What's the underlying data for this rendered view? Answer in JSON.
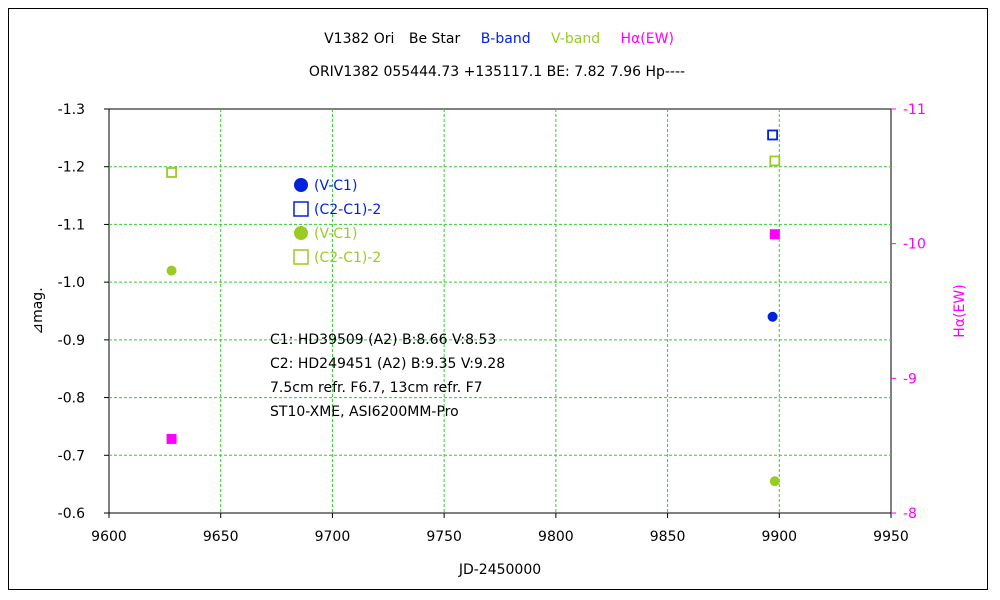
{
  "title": {
    "star": "V1382 Ori",
    "type": "Be Star",
    "bband": "B-band",
    "vband": "V-band",
    "ha": "Hα(EW)",
    "line2": "ORIV1382 055444.73 +135117.1 BE: 7.82 7.96 Hp----"
  },
  "colors": {
    "bband": "#0022dd",
    "vband": "#99cc22",
    "ha": "#ff00ff",
    "grid": "#33cc33"
  },
  "legend": [
    {
      "label": "(V-C1)",
      "color": "#0022dd",
      "marker": "filled-circle"
    },
    {
      "label": "(C2-C1)-2",
      "color": "#0022dd",
      "marker": "open-square"
    },
    {
      "label": "(V-C1)",
      "color": "#99cc22",
      "marker": "filled-circle"
    },
    {
      "label": "(C2-C1)-2",
      "color": "#99cc22",
      "marker": "open-square"
    }
  ],
  "notes": [
    "C1: HD39509 (A2)  B:8.66 V:8.53",
    "C2: HD249451 (A2)  B:9.35 V:9.28",
    "7.5cm refr. F6.7, 13cm refr. F7",
    "ST10-XME,  ASI6200MM-Pro"
  ],
  "chart_data": {
    "type": "scatter",
    "xlabel": "JD-2450000",
    "ylabel": "⊿mag.",
    "y2label": "Hα(EW)",
    "xlim": [
      9600,
      9950
    ],
    "ylim": [
      -0.6,
      -1.3
    ],
    "y2lim": [
      -8,
      -11
    ],
    "grid": true,
    "xticks": [
      9600,
      9650,
      9700,
      9750,
      9800,
      9850,
      9900,
      9950
    ],
    "yticks": [
      -1.3,
      -1.2,
      -1.1,
      -1.0,
      -0.9,
      -0.8,
      -0.7,
      -0.6
    ],
    "y2ticks": [
      -11,
      -10,
      -9,
      -8
    ],
    "series": [
      {
        "name": "(V-C1)",
        "band": "B",
        "color": "#0022dd",
        "marker": "filled-circle",
        "axis": "left",
        "points": [
          [
            9897,
            -0.94
          ]
        ]
      },
      {
        "name": "(C2-C1)-2",
        "band": "B",
        "color": "#0022dd",
        "marker": "open-square",
        "axis": "left",
        "points": [
          [
            9897,
            -1.255
          ]
        ]
      },
      {
        "name": "(V-C1)",
        "band": "V",
        "color": "#99cc22",
        "marker": "filled-circle",
        "axis": "left",
        "points": [
          [
            9628,
            -1.02
          ],
          [
            9898,
            -0.655
          ]
        ]
      },
      {
        "name": "(C2-C1)-2",
        "band": "V",
        "color": "#99cc22",
        "marker": "open-square",
        "axis": "left",
        "points": [
          [
            9628,
            -1.19
          ],
          [
            9898,
            -1.21
          ]
        ]
      },
      {
        "name": "Hα(EW)",
        "color": "#ff00ff",
        "marker": "filled-square",
        "axis": "right",
        "points": [
          [
            9628,
            -8.55
          ],
          [
            9898,
            -10.07
          ]
        ]
      }
    ]
  }
}
